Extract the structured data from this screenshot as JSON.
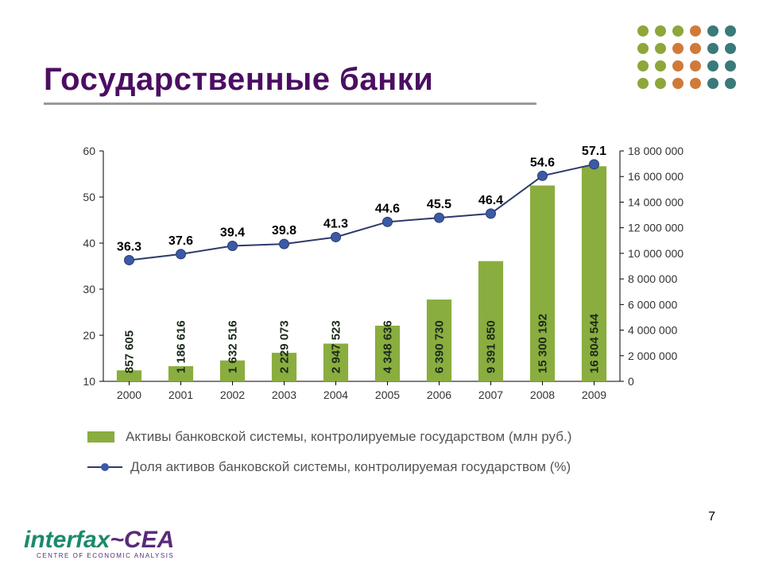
{
  "title": {
    "text": "Государственные банки",
    "color": "#4b0e62",
    "fontsize": 40
  },
  "dots": {
    "rows": 4,
    "cols": 6,
    "colors": [
      [
        "#8fa63a",
        "#8fa63a",
        "#8fa63a",
        "#d07a3a",
        "#3a7a7a",
        "#3a7a7a"
      ],
      [
        "#8fa63a",
        "#8fa63a",
        "#d07a3a",
        "#d07a3a",
        "#3a7a7a",
        "#3a7a7a"
      ],
      [
        "#8fa63a",
        "#8fa63a",
        "#d07a3a",
        "#d07a3a",
        "#3a7a7a",
        "#3a7a7a"
      ],
      [
        "#8fa63a",
        "#8fa63a",
        "#d07a3a",
        "#d07a3a",
        "#3a7a7a",
        "#3a7a7a"
      ]
    ]
  },
  "chart": {
    "type": "bar+line",
    "categories": [
      "2000",
      "2001",
      "2002",
      "2003",
      "2004",
      "2005",
      "2006",
      "2007",
      "2008",
      "2009"
    ],
    "bars": {
      "values": [
        857605,
        1186616,
        1632516,
        2229073,
        2947523,
        4348636,
        6390730,
        9391850,
        15300192,
        16804544
      ],
      "labels": [
        "857 605",
        "1 186 616",
        "1 632 516",
        "2 229 073",
        "2 947 523",
        "4 348 636",
        "6 390 730",
        "9 391 850",
        "15 300 192",
        "16 804 544"
      ],
      "color": "#8aad3f",
      "label_color": "#1a2a1a",
      "label_fontsize": 15
    },
    "line": {
      "values": [
        36.3,
        37.6,
        39.4,
        39.8,
        41.3,
        44.6,
        45.5,
        46.4,
        54.6,
        57.1
      ],
      "labels": [
        "36.3",
        "37.6",
        "39.4",
        "39.8",
        "41.3",
        "44.6",
        "45.5",
        "46.4",
        "54.6",
        "57.1"
      ],
      "color": "#2d3a6b",
      "marker_fill": "#3a5aa8",
      "marker_radius": 6,
      "line_width": 2,
      "label_fontsize": 16,
      "label_weight": 700
    },
    "y_left": {
      "min": 10,
      "max": 60,
      "ticks": [
        10,
        20,
        30,
        40,
        50,
        60
      ],
      "tick_labels": [
        "10",
        "20",
        "30",
        "40",
        "50",
        "60"
      ]
    },
    "y_right": {
      "min": 0,
      "max": 18000000,
      "ticks": [
        0,
        2000000,
        4000000,
        6000000,
        8000000,
        10000000,
        12000000,
        14000000,
        16000000,
        18000000
      ],
      "tick_labels": [
        "0",
        "2 000 000",
        "4 000 000",
        "6 000 000",
        "8 000 000",
        "10 000 000",
        "12 000 000",
        "14 000 000",
        "16 000 000",
        "18 000 000"
      ]
    },
    "axis_fontsize": 14,
    "axis_color": "#333333",
    "background": "#ffffff"
  },
  "legend": {
    "bar": "Активы банковской системы, контролируемые государством (млн руб.)",
    "line": "Доля активов банковской системы, контролируемая государством (%)",
    "font_color": "#555555"
  },
  "logo": {
    "part1": "interfax",
    "part1_color": "#1a8a6a",
    "tilde": "~",
    "tilde_color": "#5a2a7a",
    "part2": "CEA",
    "part2_color": "#5a2a7a",
    "sub": "CENTRE OF ECONOMIC ANALYSIS",
    "sub_color": "#5a2a7a"
  },
  "page": "7"
}
